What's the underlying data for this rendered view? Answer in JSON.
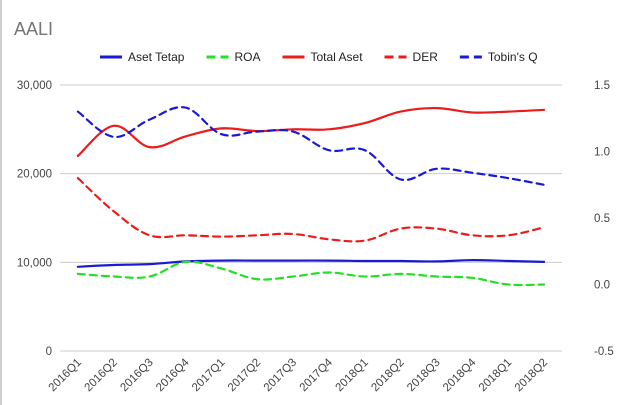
{
  "chart_data": {
    "type": "line",
    "title": "AALI",
    "categories": [
      "2016Q1",
      "2016Q2",
      "2016Q3",
      "2016Q4",
      "2017Q1",
      "2017Q2",
      "2017Q3",
      "2017Q4",
      "2018Q1",
      "2018Q2",
      "2018Q3",
      "2018Q4",
      "2018Q1",
      "2018Q2"
    ],
    "y_left": {
      "ylim": [
        0,
        30000
      ],
      "ticks": [
        0,
        10000,
        20000,
        30000
      ],
      "tick_labels": [
        "0",
        "10,000",
        "20,000",
        "30,000"
      ]
    },
    "y_right": {
      "ylim": [
        -0.5,
        1.5
      ],
      "ticks": [
        -0.5,
        0,
        0.5,
        1,
        1.5
      ],
      "tick_labels": [
        "-0.5",
        "0.0",
        "0.5",
        "1.0",
        "1.5"
      ]
    },
    "grid": true,
    "legend_position": "top",
    "series": [
      {
        "name": "Aset Tetap",
        "axis": "left",
        "color": "#1a1ad6",
        "dashed": false,
        "values": [
          9500,
          9700,
          9800,
          10100,
          10200,
          10200,
          10200,
          10200,
          10150,
          10150,
          10100,
          10250,
          10150,
          10050
        ]
      },
      {
        "name": "ROA",
        "axis": "right",
        "color": "#22e022",
        "dashed": true,
        "values": [
          0.08,
          0.06,
          0.06,
          0.17,
          0.12,
          0.04,
          0.06,
          0.09,
          0.06,
          0.08,
          0.06,
          0.05,
          0.0,
          0.0
        ]
      },
      {
        "name": "Total Aset",
        "axis": "left",
        "color": "#ec1c1c",
        "dashed": false,
        "values": [
          22000,
          25400,
          23000,
          24200,
          25100,
          24800,
          25000,
          25000,
          25700,
          27000,
          27400,
          26900,
          27000,
          27200
        ]
      },
      {
        "name": "DER",
        "axis": "right",
        "color": "#ec1c1c",
        "dashed": true,
        "values": [
          0.8,
          0.55,
          0.37,
          0.37,
          0.36,
          0.37,
          0.38,
          0.34,
          0.33,
          0.42,
          0.42,
          0.37,
          0.37,
          0.43
        ]
      },
      {
        "name": "Tobin's Q",
        "axis": "right",
        "color": "#1a1ad6",
        "dashed": true,
        "values": [
          1.3,
          1.11,
          1.24,
          1.33,
          1.13,
          1.15,
          1.15,
          1.01,
          1.01,
          0.79,
          0.87,
          0.84,
          0.8,
          0.75
        ]
      }
    ]
  }
}
